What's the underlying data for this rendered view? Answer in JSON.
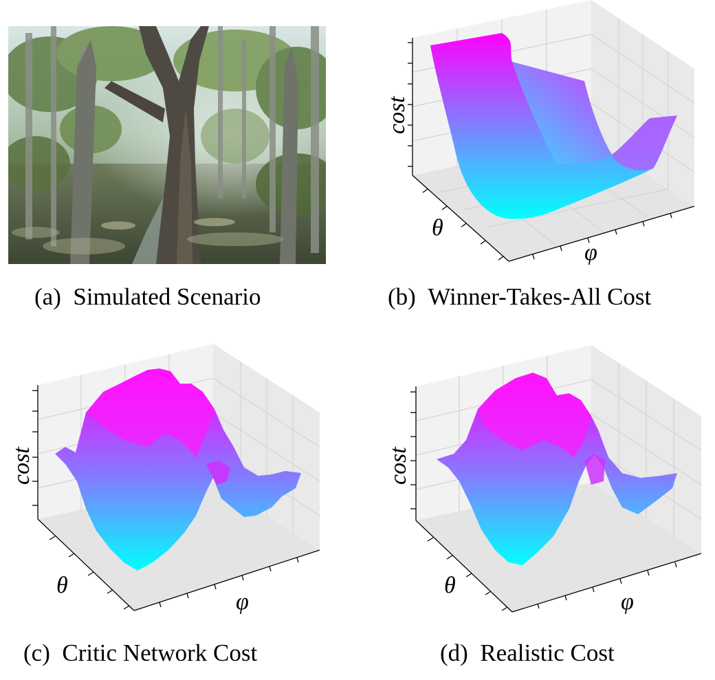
{
  "panels": [
    {
      "tag": "(a)",
      "title": "Simulated Scenario"
    },
    {
      "tag": "(b)",
      "title": "Winner-Takes-All Cost"
    },
    {
      "tag": "(c)",
      "title": "Critic Network Cost"
    },
    {
      "tag": "(d)",
      "title": "Realistic Cost"
    }
  ],
  "axes": {
    "z": "cost",
    "theta": "θ",
    "phi": "φ"
  },
  "colors": {
    "surface_low": "#00ffff",
    "surface_high": "#ff00ff",
    "pane": "#f2f2f2",
    "grid": "#d9d9d9"
  }
}
